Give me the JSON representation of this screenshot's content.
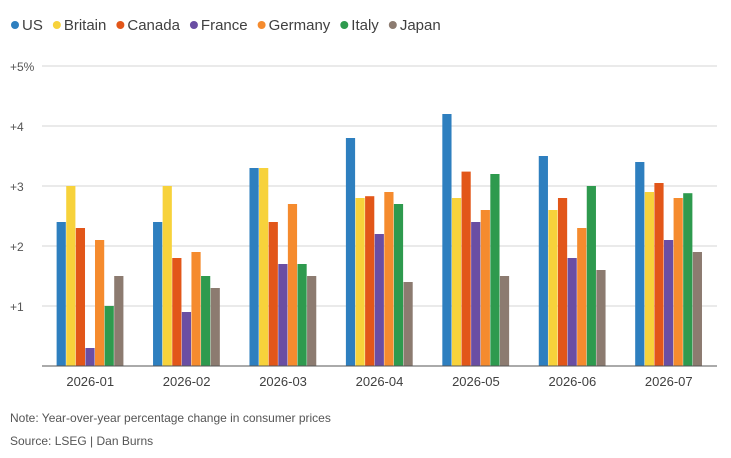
{
  "chart_data": {
    "type": "bar",
    "categories": [
      "2026-01",
      "2026-02",
      "2026-03",
      "2026-04",
      "2026-05",
      "2026-06",
      "2026-07"
    ],
    "series": [
      {
        "name": "US",
        "color": "#2e7fbf",
        "values": [
          2.4,
          2.4,
          3.3,
          3.8,
          4.2,
          3.5,
          3.4
        ]
      },
      {
        "name": "Britain",
        "color": "#f7d23b",
        "values": [
          3.0,
          3.0,
          3.3,
          2.8,
          2.8,
          2.6,
          2.9
        ]
      },
      {
        "name": "Canada",
        "color": "#e25619",
        "values": [
          2.3,
          1.8,
          2.4,
          2.83,
          3.24,
          2.8,
          3.05
        ]
      },
      {
        "name": "France",
        "color": "#6a4ea3",
        "values": [
          0.3,
          0.9,
          1.7,
          2.2,
          2.4,
          1.8,
          2.1
        ]
      },
      {
        "name": "Germany",
        "color": "#f58b2e",
        "values": [
          2.1,
          1.9,
          2.7,
          2.9,
          2.6,
          2.3,
          2.8
        ]
      },
      {
        "name": "Italy",
        "color": "#2e9a4e",
        "values": [
          1.0,
          1.5,
          1.7,
          2.7,
          3.2,
          3.0,
          2.88
        ]
      },
      {
        "name": "Japan",
        "color": "#8c7b70",
        "values": [
          1.5,
          1.3,
          1.5,
          1.4,
          1.5,
          1.6,
          1.9
        ]
      }
    ],
    "ylim": [
      0,
      5
    ],
    "yticks": [
      1,
      2,
      3,
      4,
      5
    ],
    "ytick_labels": [
      "+1",
      "+2",
      "+3",
      "+4",
      "+5%"
    ],
    "grid": true,
    "legend_position": "top-left"
  },
  "footer": {
    "note": "Note: Year-over-year percentage change in consumer prices",
    "source": "Source: LSEG | Dan Burns"
  }
}
